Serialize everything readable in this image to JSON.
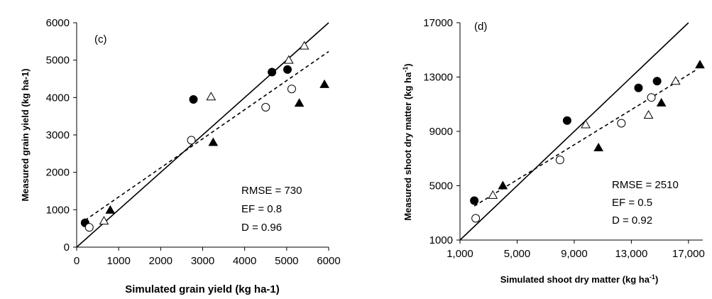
{
  "chart_data": [
    {
      "type": "scatter",
      "panel_label": "(c)",
      "xlabel": "Simulated grain yield (kg ha-1)",
      "ylabel": "Measured grain yield (kg ha-1)",
      "xlim": [
        0,
        6000
      ],
      "ylim": [
        0,
        6000
      ],
      "xticks": [
        "0",
        "1000",
        "2000",
        "3000",
        "4000",
        "5000",
        "6000"
      ],
      "yticks": [
        "0",
        "1000",
        "2000",
        "3000",
        "4000",
        "5000",
        "6000"
      ],
      "grid": false,
      "stats": [
        "RMSE = 730",
        "EF = 0.8",
        "D = 0.96"
      ],
      "one_to_one_line": [
        [
          0,
          0
        ],
        [
          6000,
          6000
        ]
      ],
      "regression_line": [
        [
          200,
          720
        ],
        [
          6000,
          5230
        ]
      ],
      "series": [
        {
          "marker": "filled-circle",
          "points": [
            [
              200,
              650
            ],
            [
              2780,
              3950
            ],
            [
              4650,
              4680
            ],
            [
              5020,
              4750
            ]
          ]
        },
        {
          "marker": "open-circle",
          "points": [
            [
              300,
              530
            ],
            [
              2730,
              2860
            ],
            [
              4500,
              3740
            ],
            [
              5120,
              4230
            ]
          ]
        },
        {
          "marker": "filled-triangle",
          "points": [
            [
              800,
              990
            ],
            [
              3250,
              2800
            ],
            [
              5300,
              3850
            ],
            [
              5900,
              4350
            ]
          ]
        },
        {
          "marker": "open-triangle",
          "points": [
            [
              650,
              700
            ],
            [
              3200,
              4020
            ],
            [
              5050,
              5000
            ],
            [
              5420,
              5380
            ]
          ]
        }
      ]
    },
    {
      "type": "scatter",
      "panel_label": "(d)",
      "xlabel": "Simulated shoot dry matter (kg ha",
      "xlabel_sup": "-1",
      "xlabel_end": ")",
      "ylabel": "Measured shoot dry matter (kg ha",
      "ylabel_sup": "-1",
      "ylabel_end": ")",
      "xlim": [
        1000,
        18000
      ],
      "ylim": [
        1000,
        17000
      ],
      "xticks_values": [
        1000,
        5000,
        9000,
        13000,
        17000
      ],
      "xticks": [
        "1,000",
        "5,000",
        "9,000",
        "13,000",
        "17,000"
      ],
      "yticks_values": [
        1000,
        5000,
        9000,
        13000,
        17000
      ],
      "yticks": [
        "1000",
        "5000",
        "9000",
        "13000",
        "17000"
      ],
      "grid": false,
      "stats": [
        "RMSE = 2510",
        "EF = 0.5",
        "D = 0.92"
      ],
      "one_to_one_line": [
        [
          1000,
          1000
        ],
        [
          17000,
          17000
        ]
      ],
      "regression_line": [
        [
          2000,
          3500
        ],
        [
          17500,
          13500
        ]
      ],
      "series": [
        {
          "marker": "filled-circle",
          "points": [
            [
              2000,
              3900
            ],
            [
              8500,
              9800
            ],
            [
              13500,
              12200
            ],
            [
              14800,
              12700
            ]
          ]
        },
        {
          "marker": "open-circle",
          "points": [
            [
              2100,
              2600
            ],
            [
              8000,
              6900
            ],
            [
              12300,
              9600
            ],
            [
              14400,
              11500
            ]
          ]
        },
        {
          "marker": "filled-triangle",
          "points": [
            [
              4000,
              5000
            ],
            [
              10700,
              7800
            ],
            [
              15100,
              11100
            ],
            [
              17800,
              13900
            ]
          ]
        },
        {
          "marker": "open-triangle",
          "points": [
            [
              3300,
              4300
            ],
            [
              9800,
              9500
            ],
            [
              14200,
              10200
            ],
            [
              16100,
              12700
            ]
          ]
        }
      ]
    }
  ]
}
